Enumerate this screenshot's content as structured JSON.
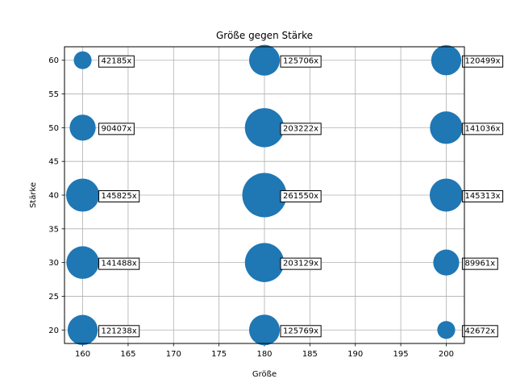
{
  "chart_data": {
    "type": "scatter",
    "title": "Größe gegen Stärke",
    "xlabel": "Größe",
    "ylabel": "Stärke",
    "xlim": [
      158,
      202
    ],
    "ylim": [
      18,
      62
    ],
    "xticks": [
      160,
      165,
      170,
      175,
      180,
      185,
      190,
      195,
      200
    ],
    "yticks": [
      20,
      25,
      30,
      35,
      40,
      45,
      50,
      55,
      60
    ],
    "grid": true,
    "color": "#1f77b4",
    "points": [
      {
        "x": 160,
        "y": 60,
        "size": 42185,
        "label": "42185x"
      },
      {
        "x": 160,
        "y": 50,
        "size": 90407,
        "label": "90407x"
      },
      {
        "x": 160,
        "y": 40,
        "size": 145825,
        "label": "145825x"
      },
      {
        "x": 160,
        "y": 30,
        "size": 141488,
        "label": "141488x"
      },
      {
        "x": 160,
        "y": 20,
        "size": 121238,
        "label": "121238x"
      },
      {
        "x": 180,
        "y": 60,
        "size": 125706,
        "label": "125706x"
      },
      {
        "x": 180,
        "y": 50,
        "size": 203222,
        "label": "203222x"
      },
      {
        "x": 180,
        "y": 40,
        "size": 261550,
        "label": "261550x"
      },
      {
        "x": 180,
        "y": 30,
        "size": 203129,
        "label": "203129x"
      },
      {
        "x": 180,
        "y": 20,
        "size": 125769,
        "label": "125769x"
      },
      {
        "x": 200,
        "y": 60,
        "size": 120499,
        "label": "120499x"
      },
      {
        "x": 200,
        "y": 50,
        "size": 141036,
        "label": "141036x"
      },
      {
        "x": 200,
        "y": 40,
        "size": 145313,
        "label": "145313x"
      },
      {
        "x": 200,
        "y": 30,
        "size": 89961,
        "label": "89961x"
      },
      {
        "x": 200,
        "y": 20,
        "size": 42672,
        "label": "42672x"
      }
    ]
  }
}
